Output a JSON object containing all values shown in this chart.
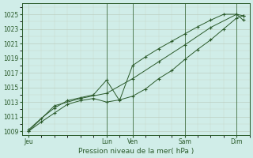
{
  "xlabel": "Pression niveau de la mer( hPa )",
  "bg_color": "#d0ede8",
  "grid_major_color": "#c0c8c0",
  "grid_minor_color": "#dce8e0",
  "line_color": "#2a5a2a",
  "vline_color": "#3a6a3a",
  "ylim": [
    1008.5,
    1026.5
  ],
  "yticks": [
    1009,
    1011,
    1013,
    1015,
    1017,
    1019,
    1021,
    1023,
    1025
  ],
  "xtick_labels": [
    "Jeu",
    "Lun",
    "Ven",
    "Sam",
    "Dim"
  ],
  "xtick_positions": [
    0,
    6,
    8,
    12,
    16
  ],
  "xlim": [
    -0.5,
    17
  ],
  "vline_positions": [
    6,
    8,
    12,
    16
  ],
  "series1_x": [
    0,
    1,
    2,
    3,
    4,
    5,
    6,
    7,
    8,
    9,
    10,
    11,
    12,
    13,
    14,
    15,
    16,
    16.5
  ],
  "series1_y": [
    1009,
    1010.3,
    1011.5,
    1012.7,
    1013.2,
    1013.5,
    1013.0,
    1013.3,
    1013.8,
    1014.8,
    1016.2,
    1017.3,
    1018.8,
    1020.2,
    1021.5,
    1023.0,
    1024.5,
    1024.8
  ],
  "series2_x": [
    0,
    1,
    2,
    3,
    4,
    5,
    6,
    7,
    8,
    9,
    10,
    11,
    12,
    13,
    14,
    15,
    16,
    16.5
  ],
  "series2_y": [
    1009.2,
    1010.8,
    1012.2,
    1013.2,
    1013.6,
    1014.0,
    1016.0,
    1013.2,
    1018.0,
    1019.2,
    1020.3,
    1021.3,
    1022.3,
    1023.3,
    1024.2,
    1025.0,
    1025.0,
    1024.8
  ],
  "series3_x": [
    0,
    2,
    4,
    6,
    8,
    10,
    12,
    14,
    16,
    16.5
  ],
  "series3_y": [
    1009.0,
    1012.5,
    1013.5,
    1014.2,
    1016.2,
    1018.5,
    1020.8,
    1023.2,
    1025.0,
    1024.2
  ]
}
